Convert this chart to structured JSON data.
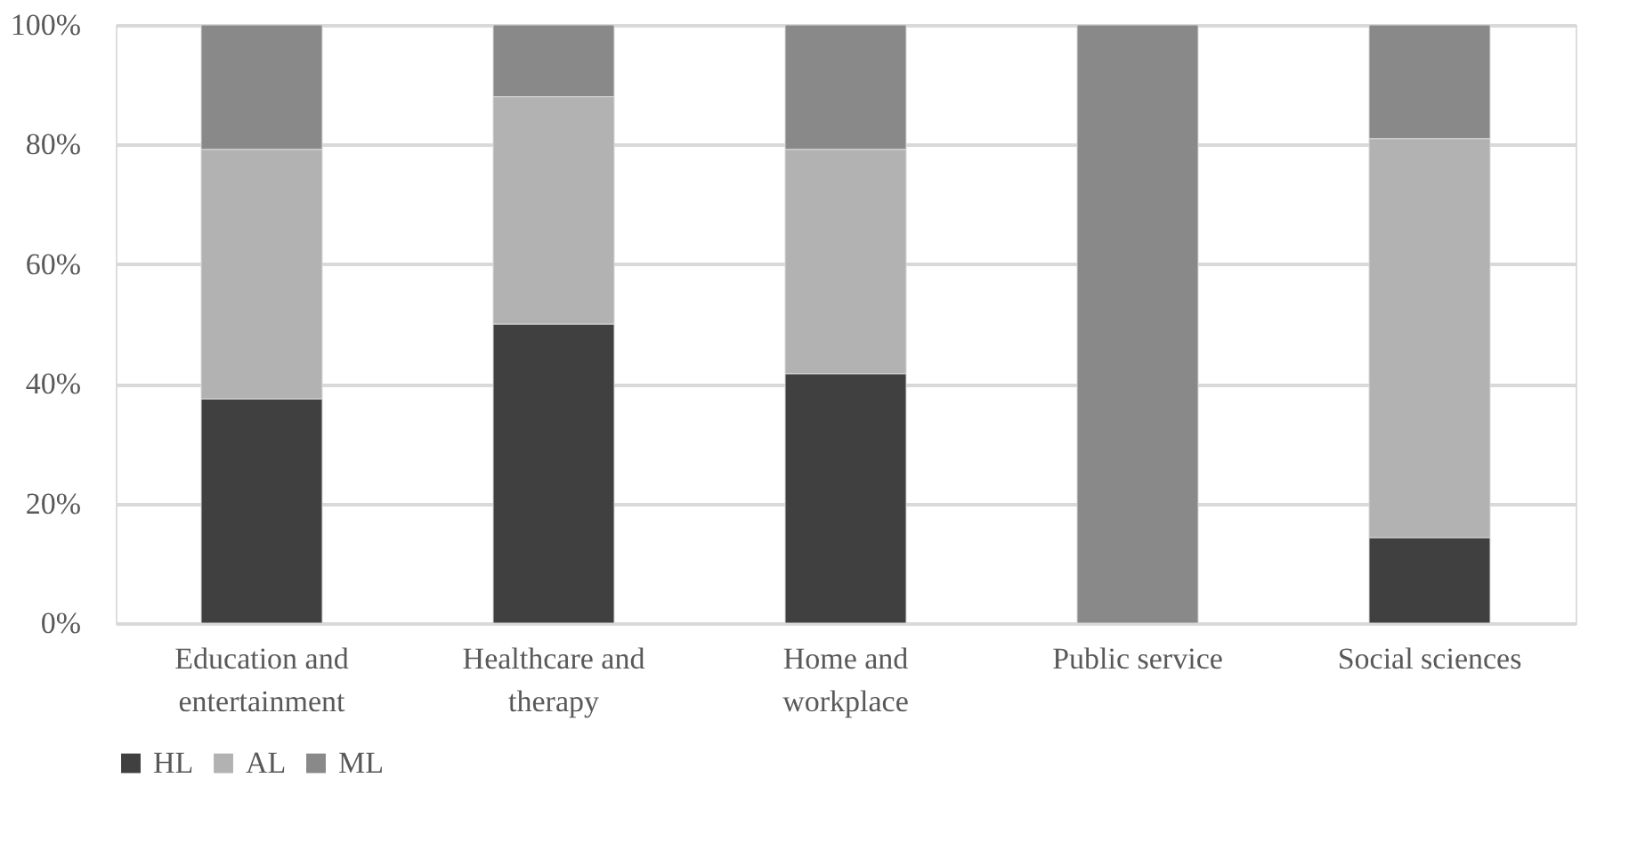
{
  "chart_data": {
    "type": "bar",
    "stacked": true,
    "categories": [
      "Education and entertainment",
      "Healthcare and therapy",
      "Home and workplace",
      "Public service",
      "Social sciences"
    ],
    "series": [
      {
        "name": "HL",
        "color": "#404040",
        "values": [
          37.5,
          50,
          41.7,
          0,
          14.3
        ]
      },
      {
        "name": "AL",
        "color": "#b2b2b2",
        "values": [
          41.7,
          38,
          37.5,
          0,
          66.7
        ]
      },
      {
        "name": "ML",
        "color": "#898989",
        "values": [
          20.8,
          12,
          20.8,
          100,
          19.0
        ]
      }
    ],
    "ylim": [
      0,
      100
    ],
    "yticks": [
      {
        "value": 0,
        "label": "0%"
      },
      {
        "value": 20,
        "label": "20%"
      },
      {
        "value": 40,
        "label": "40%"
      },
      {
        "value": 60,
        "label": "60%"
      },
      {
        "value": 80,
        "label": "80%"
      },
      {
        "value": 100,
        "label": "100%"
      }
    ],
    "grid": "y",
    "legend": "bottom"
  }
}
